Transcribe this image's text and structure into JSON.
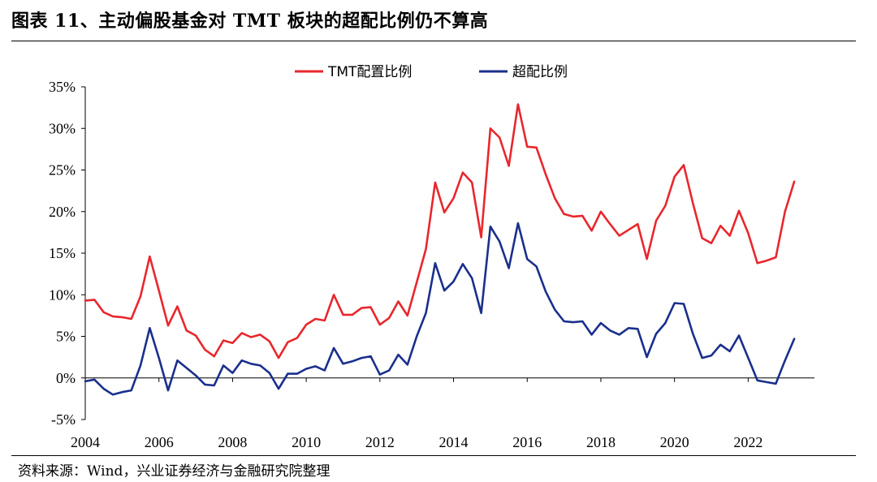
{
  "header": {
    "title": "图表 11、主动偏股基金对 TMT 板块的超配比例仍不算高"
  },
  "footer": {
    "source": "资料来源：Wind，兴业证券经济与金融研究院整理"
  },
  "chart_data": {
    "type": "line",
    "title": "",
    "xlabel": "",
    "ylabel": "",
    "xlim": [
      2004.0,
      2023.8
    ],
    "ylim": [
      -5,
      35
    ],
    "y_ticks": [
      "35%",
      "30%",
      "25%",
      "20%",
      "15%",
      "10%",
      "5%",
      "0%",
      "-5%"
    ],
    "y_tick_values": [
      35,
      30,
      25,
      20,
      15,
      10,
      5,
      0,
      -5
    ],
    "x_ticks": [
      "2004",
      "2006",
      "2008",
      "2010",
      "2012",
      "2014",
      "2016",
      "2018",
      "2020",
      "2022"
    ],
    "x_tick_values": [
      2004,
      2006,
      2008,
      2010,
      2012,
      2014,
      2016,
      2018,
      2020,
      2022
    ],
    "legend_position": "top-center",
    "grid": false,
    "x": [
      2004.0,
      2004.25,
      2004.5,
      2004.75,
      2005.0,
      2005.25,
      2005.5,
      2005.75,
      2006.0,
      2006.25,
      2006.5,
      2006.75,
      2007.0,
      2007.25,
      2007.5,
      2007.75,
      2008.0,
      2008.25,
      2008.5,
      2008.75,
      2009.0,
      2009.25,
      2009.5,
      2009.75,
      2010.0,
      2010.25,
      2010.5,
      2010.75,
      2011.0,
      2011.25,
      2011.5,
      2011.75,
      2012.0,
      2012.25,
      2012.5,
      2012.75,
      2013.0,
      2013.25,
      2013.5,
      2013.75,
      2014.0,
      2014.25,
      2014.5,
      2014.75,
      2015.0,
      2015.25,
      2015.5,
      2015.75,
      2016.0,
      2016.25,
      2016.5,
      2016.75,
      2017.0,
      2017.25,
      2017.5,
      2017.75,
      2018.0,
      2018.25,
      2018.5,
      2018.75,
      2019.0,
      2019.25,
      2019.5,
      2019.75,
      2020.0,
      2020.25,
      2020.5,
      2020.75,
      2021.0,
      2021.25,
      2021.5,
      2021.75,
      2022.0,
      2022.25,
      2022.5,
      2022.75,
      2023.0,
      2023.25
    ],
    "series": [
      {
        "name": "TMT配置比例",
        "color": "#e8272d",
        "values": [
          9.3,
          9.4,
          7.9,
          7.4,
          7.3,
          7.1,
          9.8,
          14.6,
          10.5,
          6.3,
          8.6,
          5.7,
          5.1,
          3.4,
          2.6,
          4.5,
          4.2,
          5.4,
          4.9,
          5.2,
          4.4,
          2.4,
          4.3,
          4.8,
          6.4,
          7.1,
          6.9,
          10.0,
          7.6,
          7.6,
          8.4,
          8.5,
          6.4,
          7.2,
          9.2,
          7.5,
          11.5,
          15.5,
          23.5,
          19.9,
          21.6,
          24.7,
          23.5,
          16.9,
          30.0,
          28.9,
          25.5,
          32.9,
          27.8,
          27.7,
          24.5,
          21.6,
          19.7,
          19.4,
          19.5,
          17.7,
          20.0,
          18.5,
          17.1,
          17.8,
          18.5,
          14.3,
          18.9,
          20.7,
          24.2,
          25.6,
          21.0,
          16.8,
          16.2,
          18.3,
          17.1,
          20.1,
          17.4,
          13.8,
          14.1,
          14.5,
          20.0,
          23.6
        ]
      },
      {
        "name": "超配比例",
        "color": "#1a2f8c",
        "values": [
          -0.4,
          -0.2,
          -1.3,
          -2.0,
          -1.7,
          -1.5,
          1.5,
          6.0,
          2.4,
          -1.5,
          2.1,
          1.2,
          0.3,
          -0.8,
          -0.9,
          1.5,
          0.6,
          2.1,
          1.7,
          1.5,
          0.6,
          -1.3,
          0.5,
          0.5,
          1.1,
          1.4,
          0.9,
          3.6,
          1.7,
          2.0,
          2.4,
          2.6,
          0.4,
          0.9,
          2.8,
          1.6,
          5.0,
          7.8,
          13.8,
          10.5,
          11.6,
          13.7,
          12.0,
          7.8,
          18.2,
          16.4,
          13.2,
          18.6,
          14.3,
          13.4,
          10.4,
          8.2,
          6.8,
          6.7,
          6.8,
          5.2,
          6.6,
          5.7,
          5.2,
          6.0,
          5.9,
          2.5,
          5.3,
          6.6,
          9.0,
          8.9,
          5.3,
          2.4,
          2.7,
          4.0,
          3.2,
          5.1,
          2.4,
          -0.3,
          -0.5,
          -0.7,
          2.1,
          4.7
        ]
      }
    ]
  }
}
